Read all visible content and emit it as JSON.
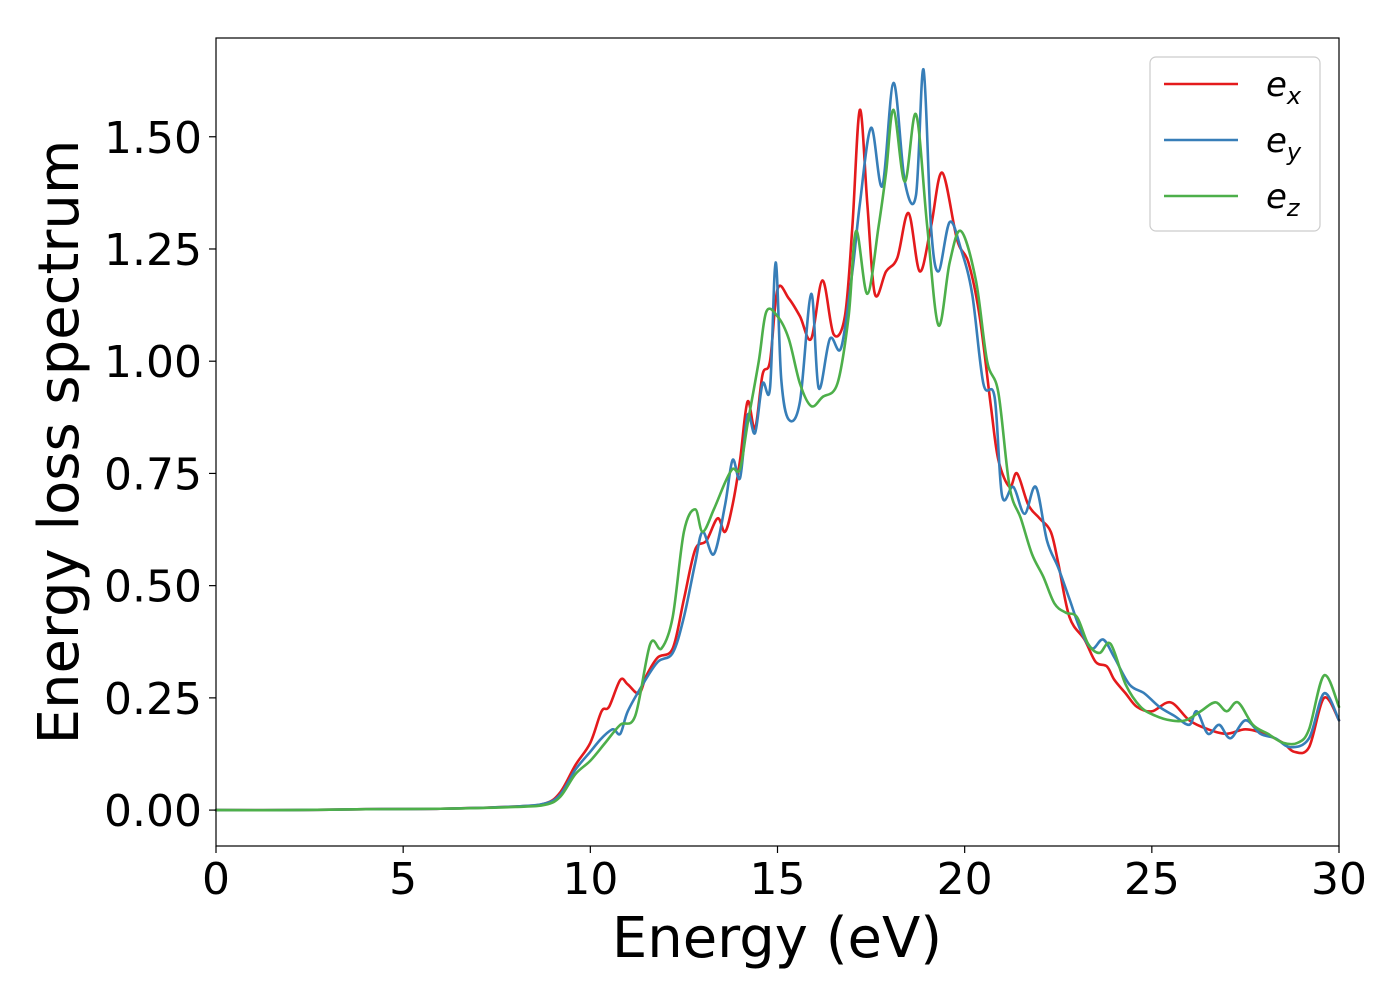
{
  "chart_data": {
    "type": "line",
    "xlabel": "Energy (eV)",
    "ylabel": "Energy loss spectrum",
    "xlim": [
      0,
      30
    ],
    "ylim": [
      -0.08,
      1.72
    ],
    "xticks": [
      0,
      5,
      10,
      15,
      20,
      25,
      30
    ],
    "yticks": [
      0.0,
      0.25,
      0.5,
      0.75,
      1.0,
      1.25,
      1.5
    ],
    "xtick_labels": [
      "0",
      "5",
      "10",
      "15",
      "20",
      "25",
      "30"
    ],
    "ytick_labels": [
      "0.00",
      "0.25",
      "0.50",
      "0.75",
      "1.00",
      "1.25",
      "1.50"
    ],
    "grid": false,
    "legend_position": "top-right",
    "series": [
      {
        "name": "e_x",
        "label_base": "e",
        "label_sub": "x",
        "color": "#e41a1c",
        "points": [
          [
            0,
            0.0
          ],
          [
            2,
            0.0
          ],
          [
            4,
            0.002
          ],
          [
            6,
            0.003
          ],
          [
            8,
            0.008
          ],
          [
            8.8,
            0.015
          ],
          [
            9.2,
            0.04
          ],
          [
            9.6,
            0.1
          ],
          [
            10,
            0.15
          ],
          [
            10.3,
            0.22
          ],
          [
            10.5,
            0.23
          ],
          [
            10.8,
            0.29
          ],
          [
            11,
            0.28
          ],
          [
            11.3,
            0.26
          ],
          [
            11.5,
            0.3
          ],
          [
            11.8,
            0.34
          ],
          [
            12.2,
            0.36
          ],
          [
            12.5,
            0.47
          ],
          [
            12.8,
            0.58
          ],
          [
            13.1,
            0.6
          ],
          [
            13.4,
            0.65
          ],
          [
            13.6,
            0.62
          ],
          [
            13.8,
            0.68
          ],
          [
            14,
            0.78
          ],
          [
            14.2,
            0.91
          ],
          [
            14.4,
            0.85
          ],
          [
            14.6,
            0.97
          ],
          [
            14.8,
            1.0
          ],
          [
            15,
            1.16
          ],
          [
            15.3,
            1.14
          ],
          [
            15.6,
            1.1
          ],
          [
            15.9,
            1.05
          ],
          [
            16.2,
            1.18
          ],
          [
            16.5,
            1.06
          ],
          [
            16.8,
            1.1
          ],
          [
            17,
            1.3
          ],
          [
            17.2,
            1.56
          ],
          [
            17.4,
            1.35
          ],
          [
            17.6,
            1.15
          ],
          [
            17.9,
            1.2
          ],
          [
            18.2,
            1.23
          ],
          [
            18.5,
            1.33
          ],
          [
            18.8,
            1.2
          ],
          [
            19.1,
            1.3
          ],
          [
            19.4,
            1.42
          ],
          [
            19.8,
            1.27
          ],
          [
            20.1,
            1.22
          ],
          [
            20.4,
            1.1
          ],
          [
            20.7,
            0.9
          ],
          [
            20.9,
            0.78
          ],
          [
            21.2,
            0.72
          ],
          [
            21.4,
            0.75
          ],
          [
            21.7,
            0.68
          ],
          [
            22,
            0.65
          ],
          [
            22.3,
            0.62
          ],
          [
            22.5,
            0.55
          ],
          [
            22.8,
            0.43
          ],
          [
            23.2,
            0.38
          ],
          [
            23.5,
            0.33
          ],
          [
            23.8,
            0.32
          ],
          [
            24,
            0.29
          ],
          [
            24.3,
            0.26
          ],
          [
            24.6,
            0.23
          ],
          [
            25,
            0.22
          ],
          [
            25.5,
            0.24
          ],
          [
            26,
            0.2
          ],
          [
            26.5,
            0.18
          ],
          [
            27,
            0.17
          ],
          [
            27.5,
            0.18
          ],
          [
            28,
            0.17
          ],
          [
            28.5,
            0.15
          ],
          [
            28.8,
            0.13
          ],
          [
            29.2,
            0.14
          ],
          [
            29.6,
            0.25
          ],
          [
            30,
            0.2
          ]
        ]
      },
      {
        "name": "e_y",
        "label_base": "e",
        "label_sub": "y",
        "color": "#377eb8",
        "points": [
          [
            0,
            0.0
          ],
          [
            2,
            0.0
          ],
          [
            4,
            0.002
          ],
          [
            6,
            0.003
          ],
          [
            8,
            0.008
          ],
          [
            8.8,
            0.015
          ],
          [
            9.2,
            0.035
          ],
          [
            9.6,
            0.09
          ],
          [
            10,
            0.13
          ],
          [
            10.3,
            0.16
          ],
          [
            10.6,
            0.18
          ],
          [
            10.8,
            0.17
          ],
          [
            11,
            0.22
          ],
          [
            11.4,
            0.28
          ],
          [
            11.8,
            0.33
          ],
          [
            12.2,
            0.35
          ],
          [
            12.5,
            0.43
          ],
          [
            12.8,
            0.55
          ],
          [
            13,
            0.62
          ],
          [
            13.3,
            0.57
          ],
          [
            13.6,
            0.68
          ],
          [
            13.8,
            0.78
          ],
          [
            14,
            0.74
          ],
          [
            14.2,
            0.88
          ],
          [
            14.4,
            0.84
          ],
          [
            14.6,
            0.95
          ],
          [
            14.8,
            0.94
          ],
          [
            14.95,
            1.22
          ],
          [
            15.1,
            0.96
          ],
          [
            15.3,
            0.87
          ],
          [
            15.6,
            0.91
          ],
          [
            15.9,
            1.15
          ],
          [
            16.1,
            0.94
          ],
          [
            16.4,
            1.05
          ],
          [
            16.7,
            1.03
          ],
          [
            17,
            1.2
          ],
          [
            17.2,
            1.35
          ],
          [
            17.5,
            1.52
          ],
          [
            17.8,
            1.39
          ],
          [
            18.1,
            1.62
          ],
          [
            18.4,
            1.4
          ],
          [
            18.7,
            1.37
          ],
          [
            18.9,
            1.65
          ],
          [
            19.1,
            1.3
          ],
          [
            19.3,
            1.2
          ],
          [
            19.6,
            1.31
          ],
          [
            19.9,
            1.25
          ],
          [
            20.2,
            1.15
          ],
          [
            20.5,
            0.95
          ],
          [
            20.8,
            0.92
          ],
          [
            21,
            0.7
          ],
          [
            21.3,
            0.72
          ],
          [
            21.6,
            0.66
          ],
          [
            21.9,
            0.72
          ],
          [
            22.2,
            0.6
          ],
          [
            22.5,
            0.54
          ],
          [
            22.8,
            0.47
          ],
          [
            23.1,
            0.4
          ],
          [
            23.4,
            0.36
          ],
          [
            23.7,
            0.38
          ],
          [
            24,
            0.34
          ],
          [
            24.4,
            0.28
          ],
          [
            24.8,
            0.26
          ],
          [
            25.2,
            0.23
          ],
          [
            25.6,
            0.21
          ],
          [
            26,
            0.19
          ],
          [
            26.2,
            0.22
          ],
          [
            26.5,
            0.17
          ],
          [
            26.8,
            0.19
          ],
          [
            27.1,
            0.16
          ],
          [
            27.5,
            0.2
          ],
          [
            27.9,
            0.17
          ],
          [
            28.3,
            0.16
          ],
          [
            28.7,
            0.14
          ],
          [
            29.2,
            0.16
          ],
          [
            29.6,
            0.26
          ],
          [
            30,
            0.2
          ]
        ]
      },
      {
        "name": "e_z",
        "label_base": "e",
        "label_sub": "z",
        "color": "#4daf4a",
        "points": [
          [
            0,
            0.0
          ],
          [
            2,
            0.0
          ],
          [
            4,
            0.002
          ],
          [
            6,
            0.003
          ],
          [
            8,
            0.007
          ],
          [
            8.8,
            0.012
          ],
          [
            9.2,
            0.03
          ],
          [
            9.6,
            0.08
          ],
          [
            10,
            0.11
          ],
          [
            10.4,
            0.15
          ],
          [
            10.8,
            0.19
          ],
          [
            11.2,
            0.21
          ],
          [
            11.6,
            0.37
          ],
          [
            11.9,
            0.36
          ],
          [
            12.2,
            0.43
          ],
          [
            12.5,
            0.62
          ],
          [
            12.8,
            0.67
          ],
          [
            13,
            0.62
          ],
          [
            13.3,
            0.67
          ],
          [
            13.6,
            0.73
          ],
          [
            13.8,
            0.76
          ],
          [
            14,
            0.76
          ],
          [
            14.2,
            0.86
          ],
          [
            14.5,
            1.0
          ],
          [
            14.7,
            1.11
          ],
          [
            15,
            1.1
          ],
          [
            15.3,
            1.05
          ],
          [
            15.6,
            0.95
          ],
          [
            15.9,
            0.9
          ],
          [
            16.2,
            0.92
          ],
          [
            16.6,
            0.95
          ],
          [
            16.9,
            1.1
          ],
          [
            17.1,
            1.29
          ],
          [
            17.4,
            1.15
          ],
          [
            17.7,
            1.3
          ],
          [
            17.9,
            1.42
          ],
          [
            18.1,
            1.56
          ],
          [
            18.4,
            1.4
          ],
          [
            18.7,
            1.55
          ],
          [
            19,
            1.3
          ],
          [
            19.3,
            1.08
          ],
          [
            19.6,
            1.22
          ],
          [
            19.9,
            1.29
          ],
          [
            20.3,
            1.18
          ],
          [
            20.6,
            1.0
          ],
          [
            20.9,
            0.93
          ],
          [
            21.2,
            0.72
          ],
          [
            21.5,
            0.65
          ],
          [
            21.8,
            0.57
          ],
          [
            22.1,
            0.52
          ],
          [
            22.4,
            0.46
          ],
          [
            22.7,
            0.44
          ],
          [
            23,
            0.43
          ],
          [
            23.3,
            0.37
          ],
          [
            23.6,
            0.35
          ],
          [
            23.9,
            0.37
          ],
          [
            24.3,
            0.28
          ],
          [
            24.7,
            0.23
          ],
          [
            25.1,
            0.21
          ],
          [
            25.5,
            0.2
          ],
          [
            25.9,
            0.2
          ],
          [
            26.3,
            0.22
          ],
          [
            26.7,
            0.24
          ],
          [
            27,
            0.22
          ],
          [
            27.3,
            0.24
          ],
          [
            27.7,
            0.19
          ],
          [
            28.1,
            0.17
          ],
          [
            28.5,
            0.15
          ],
          [
            28.9,
            0.15
          ],
          [
            29.2,
            0.18
          ],
          [
            29.6,
            0.3
          ],
          [
            30,
            0.23
          ]
        ]
      }
    ]
  }
}
